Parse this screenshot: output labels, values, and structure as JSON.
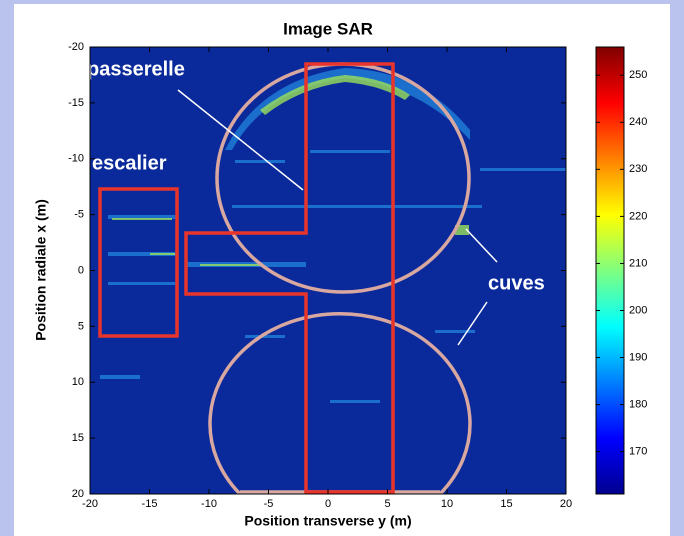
{
  "chart_data": {
    "type": "image",
    "title": "Image SAR",
    "x_label": "Position transverse y (m)",
    "y_label": "Position radiale x (m)",
    "xlim": [
      -20,
      20
    ],
    "xticks": [
      -20,
      -15,
      -10,
      -5,
      0,
      5,
      10,
      15,
      20
    ],
    "ylim": [
      -20,
      20
    ],
    "yticks": [
      -20,
      -15,
      -10,
      -5,
      0,
      5,
      10,
      15,
      20
    ],
    "y_reversed": true,
    "colorbar": {
      "clim": [
        161,
        256
      ],
      "ticks": [
        170,
        180,
        190,
        200,
        210,
        220,
        230,
        240,
        250
      ],
      "colormap": "jet"
    },
    "annotations": [
      "passerelle",
      "escalier",
      "cuves"
    ]
  }
}
